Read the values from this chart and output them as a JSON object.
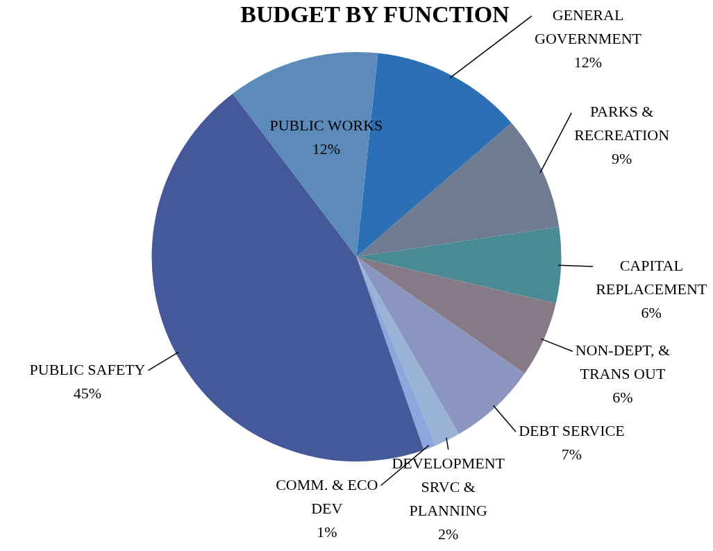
{
  "chart_data": {
    "type": "pie",
    "title": "BUDGET BY FUNCTION",
    "categories": [
      "GENERAL GOVERNMENT",
      "PARKS & RECREATION",
      "CAPITAL REPLACEMENT",
      "NON-DEPT, & TRANS OUT",
      "DEBT SERVICE",
      "DEVELOPMENT SRVC & PLANNING",
      "COMM. & ECO DEV",
      "PUBLIC SAFETY",
      "PUBLIC WORKS"
    ],
    "values": [
      12,
      9,
      6,
      6,
      7,
      2,
      1,
      45,
      12
    ],
    "value_labels": [
      "12%",
      "9%",
      "6%",
      "6%",
      "7%",
      "2%",
      "1%",
      "45%",
      "12%"
    ],
    "colors": [
      "#2b6fb4",
      "#6e7b91",
      "#4a8a94",
      "#857a85",
      "#8a96c0",
      "#9ab2d6",
      "#8ea6de",
      "#44589a",
      "#5b8abb"
    ],
    "legend": false
  }
}
